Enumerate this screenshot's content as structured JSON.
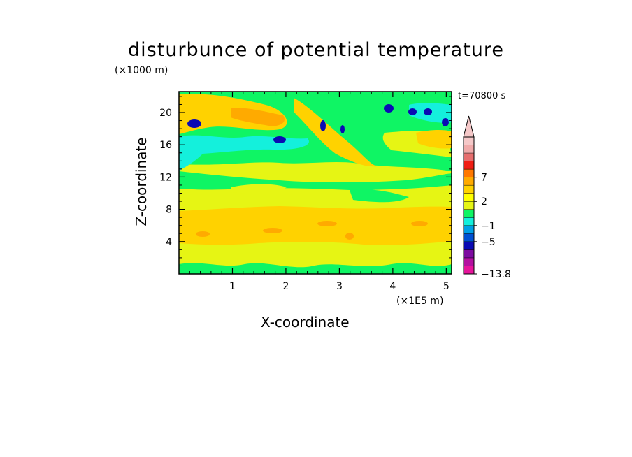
{
  "chart_data": {
    "type": "heatmap",
    "title": "disturbunce of potential temperature",
    "xlabel": "X-coordinate",
    "ylabel": "Z-coordinate",
    "x_unit": "(×1E5 m)",
    "y_unit": "(×1000 m)",
    "annotation": "t=70800 s",
    "xlim": [
      0,
      5.1
    ],
    "ylim": [
      0,
      22.6
    ],
    "x_ticks": [
      1,
      2,
      3,
      4,
      5
    ],
    "y_ticks": [
      4,
      8,
      12,
      16,
      20
    ],
    "x_tick_labels": [
      "1",
      "2",
      "3",
      "4",
      "5"
    ],
    "y_tick_labels": [
      "4",
      "8",
      "12",
      "16",
      "20"
    ],
    "colorbar": {
      "levels": [
        -13.8,
        -11,
        -9,
        -7,
        -5,
        -3,
        -1,
        0,
        1,
        2,
        3,
        5,
        7,
        9,
        11
      ],
      "colors": [
        "#e6149b",
        "#b410a0",
        "#7d0aa0",
        "#0a0ab4",
        "#0050d2",
        "#00a0e6",
        "#14f0dc",
        "#0ff564",
        "#e6f514",
        "#ffff00",
        "#ffd200",
        "#ffaa00",
        "#ff7800",
        "#f01e14",
        "#e66e6e",
        "#f0aaaa",
        "#f5c8c8"
      ],
      "labels": [
        {
          "value": 7,
          "text": "7"
        },
        {
          "value": 2,
          "text": "2"
        },
        {
          "value": -1,
          "text": "−1"
        },
        {
          "value": -5,
          "text": "−5"
        },
        {
          "value": -13.8,
          "text": "−13.8"
        }
      ],
      "extend": "max"
    },
    "field": [
      {
        "z": [
          0,
          1.4
        ],
        "band": "mixed yellow/green near surface"
      },
      {
        "z": [
          1.4,
          8.2
        ],
        "band": "2 to 3 (yellow/orange), max ~5 near x=1.5–4"
      },
      {
        "z": [
          8.2,
          12.5
        ],
        "band": "0 to 2 (yellow/green)"
      },
      {
        "z": [
          12.5,
          15.5
        ],
        "band": "-1 to 1 (green)"
      },
      {
        "z": [
          15.5,
          22.6
        ],
        "band": "wave pattern -5 to 5 (cyan/blue/orange)"
      }
    ]
  }
}
